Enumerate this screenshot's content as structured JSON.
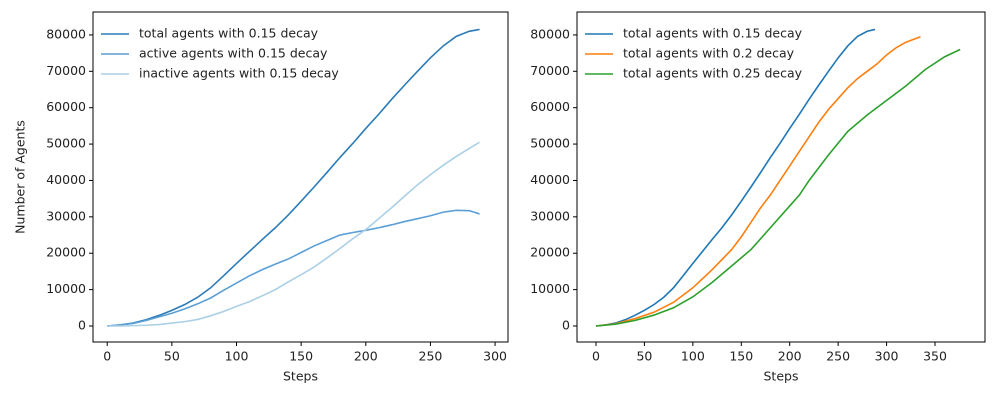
{
  "chart_data": [
    {
      "type": "line",
      "xlabel": "Steps",
      "ylabel": "Number of Agents",
      "legend": "upper left",
      "xlim": [
        -11,
        310
      ],
      "ylim": [
        -4400,
        86300
      ],
      "xticks": [
        0,
        50,
        100,
        150,
        200,
        250,
        300
      ],
      "yticks": [
        0,
        10000,
        20000,
        30000,
        40000,
        50000,
        60000,
        70000,
        80000
      ],
      "x": [
        0,
        10,
        20,
        30,
        40,
        50,
        60,
        70,
        80,
        90,
        100,
        110,
        120,
        130,
        140,
        150,
        160,
        170,
        180,
        190,
        200,
        210,
        220,
        230,
        240,
        250,
        260,
        270,
        280,
        288
      ],
      "series": [
        {
          "name": "total agents with 0.15 decay",
          "color": "#2c7bb6",
          "values": [
            0,
            300,
            800,
            1700,
            2900,
            4300,
            5900,
            7900,
            10500,
            13800,
            17200,
            20500,
            23800,
            27000,
            30500,
            34300,
            38200,
            42200,
            46300,
            50200,
            54300,
            58200,
            62300,
            66200,
            70000,
            73700,
            77000,
            79600,
            81000,
            81500
          ]
        },
        {
          "name": "active agents with 0.15 decay",
          "color": "#5b9fd6",
          "values": [
            0,
            300,
            700,
            1500,
            2500,
            3500,
            4700,
            6100,
            7700,
            9800,
            11800,
            13800,
            15500,
            17000,
            18400,
            20200,
            22000,
            23500,
            25000,
            25700,
            26300,
            27000,
            27800,
            28700,
            29500,
            30300,
            31300,
            31800,
            31700,
            30800
          ]
        },
        {
          "name": "inactive agents with 0.15 decay",
          "color": "#abd0e6",
          "values": [
            0,
            0,
            100,
            200,
            400,
            800,
            1200,
            1800,
            2800,
            4000,
            5400,
            6700,
            8300,
            10000,
            12100,
            14100,
            16200,
            18700,
            21300,
            24000,
            26500,
            29500,
            32500,
            35700,
            38800,
            41600,
            44200,
            46600,
            48800,
            50500
          ]
        }
      ]
    },
    {
      "type": "line",
      "xlabel": "Steps",
      "legend": "upper left",
      "xlim": [
        -19.6,
        401.6
      ],
      "ylim": [
        -4400,
        86300
      ],
      "xticks": [
        0,
        50,
        100,
        150,
        200,
        250,
        300,
        350
      ],
      "yticks": [
        0,
        10000,
        20000,
        30000,
        40000,
        50000,
        60000,
        70000,
        80000
      ],
      "series": [
        {
          "name": "total agents with 0.15 decay",
          "color": "#1f77b4",
          "x": [
            0,
            10,
            20,
            30,
            40,
            50,
            60,
            70,
            80,
            90,
            100,
            110,
            120,
            130,
            140,
            150,
            160,
            170,
            180,
            190,
            200,
            210,
            220,
            230,
            240,
            250,
            260,
            270,
            280,
            288
          ],
          "values": [
            0,
            300,
            800,
            1700,
            2900,
            4300,
            5900,
            7900,
            10500,
            13800,
            17200,
            20500,
            23800,
            27000,
            30500,
            34300,
            38200,
            42200,
            46300,
            50200,
            54300,
            58200,
            62300,
            66200,
            70000,
            73700,
            77000,
            79600,
            81000,
            81500
          ]
        },
        {
          "name": "total agents with 0.2 decay",
          "color": "#ff7f0e",
          "x": [
            0,
            20,
            40,
            60,
            80,
            100,
            120,
            140,
            150,
            160,
            170,
            180,
            190,
            200,
            210,
            220,
            230,
            240,
            250,
            260,
            270,
            280,
            290,
            300,
            310,
            320,
            335
          ],
          "values": [
            0,
            600,
            2000,
            3800,
            6500,
            10500,
            15500,
            21000,
            24500,
            28500,
            32500,
            36000,
            40000,
            44000,
            48000,
            52000,
            56000,
            59500,
            62500,
            65500,
            68000,
            70000,
            72000,
            74500,
            76500,
            78000,
            79500
          ]
        },
        {
          "name": "total agents with 0.25 decay",
          "color": "#2ca02c",
          "x": [
            0,
            20,
            40,
            60,
            80,
            100,
            120,
            140,
            160,
            180,
            200,
            210,
            220,
            240,
            260,
            280,
            300,
            320,
            340,
            360,
            376
          ],
          "values": [
            0,
            500,
            1500,
            3000,
            5000,
            8000,
            12000,
            16500,
            21000,
            27000,
            33000,
            36000,
            40000,
            47000,
            53500,
            58000,
            62000,
            66000,
            70500,
            74000,
            76000
          ]
        }
      ]
    }
  ]
}
